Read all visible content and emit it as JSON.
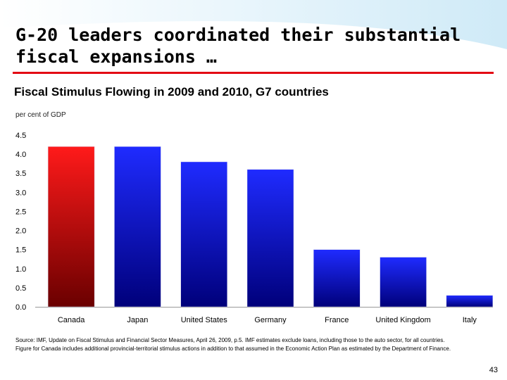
{
  "slide": {
    "title_line1": "G-20 leaders coordinated their substantial",
    "title_line2": "fiscal expansions …",
    "subtitle": "Fiscal Stimulus Flowing in 2009 and 2010, G7 countries",
    "unit_label": "per cent of GDP",
    "source_line1": "Source:  IMF, Update on Fiscal Stimulus and Financial Sector Measures, April 26, 2009, p.5. IMF estimates exclude loans, including those to the auto sector, for all countries.",
    "source_line2": "Figure for Canada includes additional provincial-territorial stimulus actions in addition to that assumed in the Economic Action Plan as estimated by the Department of Finance.",
    "page_number": "43"
  },
  "colors": {
    "accent_red": "#e30613",
    "bar_blue_light": "#1f2bff",
    "bar_blue_dark": "#00007a",
    "bar_red_light": "#ff1a1a",
    "bar_red_dark": "#6a0000"
  },
  "chart_data": {
    "type": "bar",
    "title": "Fiscal Stimulus Flowing in 2009 and 2010, G7 countries",
    "ylabel": "per cent of GDP",
    "xlabel": "",
    "categories": [
      "Canada",
      "Japan",
      "United States",
      "Germany",
      "France",
      "United Kingdom",
      "Italy"
    ],
    "values": [
      4.2,
      4.2,
      3.8,
      3.6,
      1.5,
      1.3,
      0.3
    ],
    "highlight": [
      "Canada"
    ],
    "ylim": [
      0,
      4.5
    ],
    "yticks": [
      "4.5",
      "4.0",
      "3.5",
      "3.0",
      "2.5",
      "2.0",
      "1.5",
      "1.0",
      "0.5",
      "0.0"
    ],
    "grid": false
  }
}
